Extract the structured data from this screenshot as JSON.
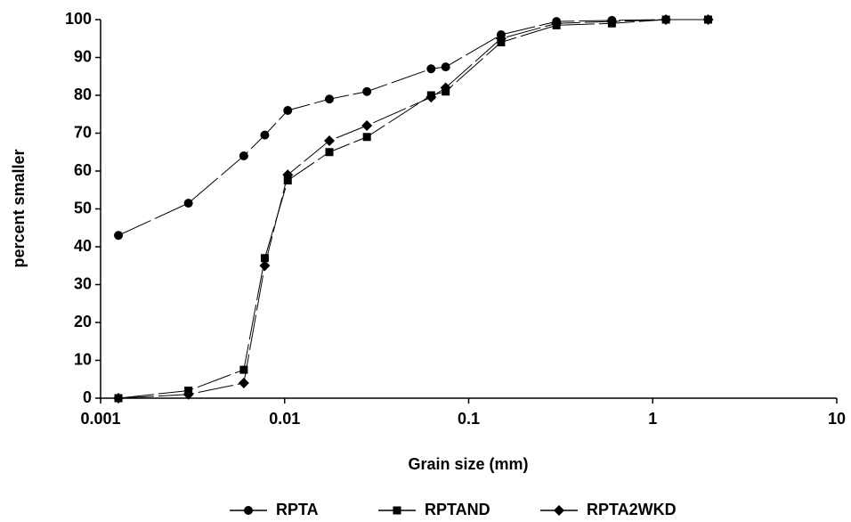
{
  "chart_data": {
    "type": "line",
    "x_label": "Grain size (mm)",
    "y_label": "percent smaller",
    "x_scale": "log",
    "xlim": [
      0.001,
      10
    ],
    "xticks": [
      0.001,
      0.01,
      0.1,
      1,
      10
    ],
    "ylim": [
      0,
      100
    ],
    "yticks": [
      0,
      10,
      20,
      30,
      40,
      50,
      60,
      70,
      80,
      90,
      100
    ],
    "grid": false,
    "legend_position": "bottom",
    "x": [
      0.00125,
      0.003,
      0.006,
      0.0078,
      0.0104,
      0.0175,
      0.028,
      0.0625,
      0.075,
      0.15,
      0.3,
      0.6,
      1.18,
      2.0
    ],
    "series": [
      {
        "name": "RPTA",
        "color": "#000000",
        "marker": "circle",
        "values": [
          43,
          51.5,
          64,
          69.5,
          76,
          79,
          81,
          87,
          87.5,
          96,
          99.5,
          99.8,
          100,
          100
        ]
      },
      {
        "name": "RPTAND",
        "color": "#000000",
        "marker": "square",
        "values": [
          0,
          2,
          7.5,
          37,
          57.5,
          65,
          69,
          80,
          81,
          94,
          98.5,
          99,
          100,
          100
        ]
      },
      {
        "name": "RPTA2WKD",
        "color": "#000000",
        "marker": "diamond",
        "values": [
          0,
          1,
          4,
          35,
          59,
          68,
          72,
          79.5,
          82,
          95,
          99,
          99.5,
          100,
          100
        ]
      }
    ]
  }
}
